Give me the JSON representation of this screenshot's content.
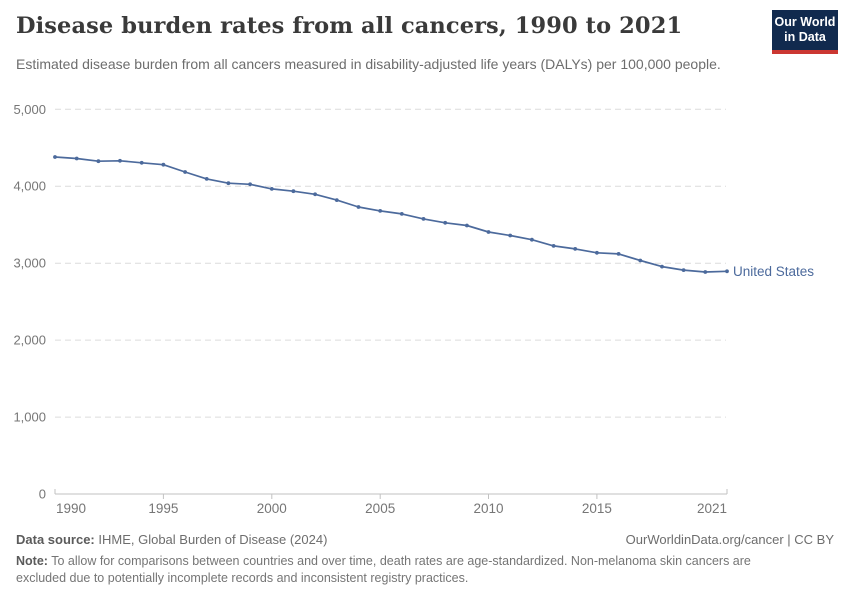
{
  "header": {
    "title": "Disease burden rates from all cancers, 1990 to 2021",
    "subtitle": "Estimated disease burden from all cancers measured in disability-adjusted life years (DALYs) per 100,000 people.",
    "logo": {
      "line1": "Our World",
      "line2": "in Data",
      "bg_color": "#112A4E",
      "stripe_color": "#CB3732"
    }
  },
  "chart_data": {
    "type": "line",
    "title": "Disease burden rates from all cancers, 1990 to 2021",
    "xlabel": "",
    "ylabel": "DALYs per 100,000 people",
    "xlim": [
      1990,
      2021
    ],
    "ylim": [
      0,
      5000
    ],
    "x_ticks": [
      1990,
      1995,
      2000,
      2005,
      2010,
      2015,
      2021
    ],
    "y_ticks": [
      0,
      1000,
      2000,
      3000,
      4000,
      5000
    ],
    "grid": "horizontal-dashed",
    "legend_position": "end-of-line-label",
    "years": [
      1990,
      1991,
      1992,
      1993,
      1994,
      1995,
      1996,
      1997,
      1998,
      1999,
      2000,
      2001,
      2002,
      2003,
      2004,
      2005,
      2006,
      2007,
      2008,
      2009,
      2010,
      2011,
      2012,
      2013,
      2014,
      2015,
      2016,
      2017,
      2018,
      2019,
      2020,
      2021
    ],
    "series": [
      {
        "name": "United States",
        "color": "#4C6A9C",
        "values": [
          4380,
          4360,
          4325,
          4330,
          4305,
          4280,
          4185,
          4095,
          4040,
          4025,
          3965,
          3935,
          3895,
          3820,
          3730,
          3680,
          3640,
          3575,
          3525,
          3490,
          3405,
          3360,
          3305,
          3225,
          3185,
          3135,
          3120,
          3035,
          2955,
          2910,
          2885,
          2895
        ]
      }
    ]
  },
  "footer": {
    "source_label": "Data source:",
    "source_text": " IHME, Global Burden of Disease (2024)",
    "rights": "OurWorldinData.org/cancer | CC BY",
    "note_label": "Note:",
    "note_text": " To allow for comparisons between countries and over time, death rates are age-standardized. Non-melanoma skin cancers are excluded due to potentially incomplete records and inconsistent registry practices."
  },
  "axis_colors": {
    "grid": "#dcdcdc",
    "axis": "#c2c2c2",
    "tick_label": "#767676"
  }
}
